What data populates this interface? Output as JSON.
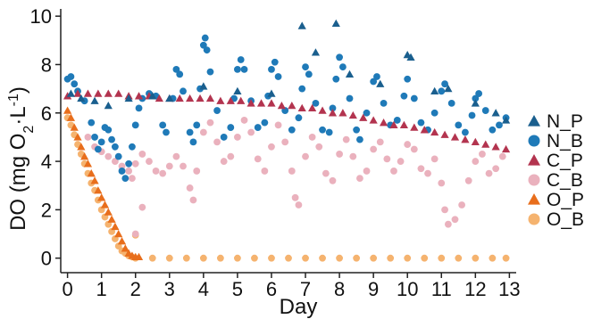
{
  "chart_data": {
    "type": "scatter",
    "xlabel": "Day",
    "ylabel": "DO (mg O2·L-1)",
    "xlim": [
      -0.2,
      13.2
    ],
    "ylim": [
      -0.6,
      10.3
    ],
    "xticks": [
      "0",
      "1",
      "2",
      "3",
      "4",
      "5",
      "6",
      "7",
      "8",
      "9",
      "10",
      "11",
      "12",
      "13"
    ],
    "yticks": [
      "0",
      "2",
      "4",
      "6",
      "8",
      "10"
    ],
    "grid": false,
    "legend_position": "right",
    "series": [
      {
        "name": "N_P",
        "marker": "triangle",
        "color": "#1a5f8e",
        "points": [
          [
            0.1,
            6.8
          ],
          [
            0.4,
            6.6
          ],
          [
            0.8,
            6.5
          ],
          [
            1.2,
            6.3
          ],
          [
            1.8,
            6.6
          ],
          [
            2.5,
            6.7
          ],
          [
            3.0,
            6.6
          ],
          [
            4.0,
            7.1
          ],
          [
            5.0,
            6.9
          ],
          [
            6.0,
            6.8
          ],
          [
            6.9,
            9.6
          ],
          [
            7.9,
            9.7
          ],
          [
            7.3,
            8.5
          ],
          [
            8.3,
            7.6
          ],
          [
            10.0,
            8.4
          ],
          [
            10.1,
            8.3
          ],
          [
            11.2,
            7.0
          ],
          [
            12.0,
            6.4
          ],
          [
            12.6,
            6.0
          ],
          [
            12.9,
            5.7
          ],
          [
            9.2,
            7.2
          ],
          [
            10.8,
            6.9
          ]
        ]
      },
      {
        "name": "N_B",
        "marker": "circle",
        "color": "#1f7ab8",
        "points": [
          [
            0.0,
            7.4
          ],
          [
            0.1,
            7.5
          ],
          [
            0.2,
            7.2
          ],
          [
            0.3,
            6.9
          ],
          [
            0.5,
            6.5
          ],
          [
            0.7,
            5.6
          ],
          [
            0.8,
            5.0
          ],
          [
            0.9,
            4.5
          ],
          [
            1.0,
            4.8
          ],
          [
            1.1,
            5.4
          ],
          [
            1.2,
            5.3
          ],
          [
            1.3,
            4.9
          ],
          [
            1.4,
            4.6
          ],
          [
            1.5,
            4.2
          ],
          [
            1.6,
            3.6
          ],
          [
            1.7,
            3.3
          ],
          [
            1.8,
            3.9
          ],
          [
            1.9,
            4.6
          ],
          [
            2.0,
            5.5
          ],
          [
            2.1,
            6.2
          ],
          [
            2.2,
            6.6
          ],
          [
            2.4,
            6.8
          ],
          [
            2.6,
            6.7
          ],
          [
            2.8,
            5.5
          ],
          [
            2.9,
            5.2
          ],
          [
            3.1,
            6.6
          ],
          [
            3.2,
            7.8
          ],
          [
            3.3,
            7.6
          ],
          [
            3.4,
            6.9
          ],
          [
            3.6,
            5.2
          ],
          [
            3.7,
            4.8
          ],
          [
            3.8,
            5.5
          ],
          [
            3.9,
            7.0
          ],
          [
            4.0,
            8.8
          ],
          [
            4.05,
            9.1
          ],
          [
            4.1,
            8.6
          ],
          [
            4.2,
            7.7
          ],
          [
            4.4,
            6.1
          ],
          [
            4.6,
            5.0
          ],
          [
            4.8,
            5.4
          ],
          [
            4.9,
            6.6
          ],
          [
            5.0,
            7.8
          ],
          [
            5.1,
            8.2
          ],
          [
            5.2,
            7.8
          ],
          [
            5.4,
            6.5
          ],
          [
            5.6,
            5.4
          ],
          [
            5.8,
            5.6
          ],
          [
            5.9,
            6.7
          ],
          [
            6.0,
            7.8
          ],
          [
            6.1,
            8.1
          ],
          [
            6.2,
            7.5
          ],
          [
            6.4,
            6.1
          ],
          [
            6.6,
            5.3
          ],
          [
            6.8,
            5.8
          ],
          [
            6.9,
            7.0
          ],
          [
            7.0,
            7.9
          ],
          [
            7.1,
            7.6
          ],
          [
            7.3,
            6.4
          ],
          [
            7.5,
            5.3
          ],
          [
            7.7,
            5.2
          ],
          [
            7.8,
            6.2
          ],
          [
            7.9,
            7.4
          ],
          [
            8.0,
            8.3
          ],
          [
            8.1,
            7.9
          ],
          [
            8.3,
            6.6
          ],
          [
            8.5,
            5.3
          ],
          [
            8.6,
            4.9
          ],
          [
            8.8,
            6.0
          ],
          [
            9.0,
            7.3
          ],
          [
            9.1,
            7.5
          ],
          [
            9.3,
            6.4
          ],
          [
            9.5,
            5.5
          ],
          [
            9.7,
            5.7
          ],
          [
            9.9,
            6.7
          ],
          [
            10.0,
            7.4
          ],
          [
            10.2,
            6.6
          ],
          [
            10.4,
            5.6
          ],
          [
            10.6,
            5.3
          ],
          [
            10.8,
            6.0
          ],
          [
            11.0,
            6.9
          ],
          [
            11.1,
            7.2
          ],
          [
            11.3,
            6.4
          ],
          [
            11.5,
            5.5
          ],
          [
            11.7,
            5.2
          ],
          [
            11.9,
            5.9
          ],
          [
            12.0,
            6.6
          ],
          [
            12.1,
            6.8
          ],
          [
            12.3,
            6.1
          ],
          [
            12.5,
            5.3
          ],
          [
            12.7,
            5.5
          ],
          [
            12.9,
            5.8
          ]
        ]
      },
      {
        "name": "C_P",
        "marker": "triangle",
        "color": "#b3344f",
        "points": [
          [
            0.0,
            6.7
          ],
          [
            0.3,
            6.8
          ],
          [
            0.6,
            6.8
          ],
          [
            0.9,
            6.8
          ],
          [
            1.2,
            6.8
          ],
          [
            1.5,
            6.8
          ],
          [
            1.8,
            6.7
          ],
          [
            2.1,
            6.7
          ],
          [
            2.4,
            6.7
          ],
          [
            2.7,
            6.6
          ],
          [
            3.0,
            6.6
          ],
          [
            3.3,
            6.6
          ],
          [
            3.6,
            6.6
          ],
          [
            3.9,
            6.6
          ],
          [
            4.2,
            6.6
          ],
          [
            4.5,
            6.5
          ],
          [
            4.8,
            6.5
          ],
          [
            5.1,
            6.5
          ],
          [
            5.4,
            6.4
          ],
          [
            5.7,
            6.4
          ],
          [
            6.0,
            6.4
          ],
          [
            6.3,
            6.3
          ],
          [
            6.6,
            6.3
          ],
          [
            6.9,
            6.2
          ],
          [
            7.2,
            6.2
          ],
          [
            7.5,
            6.1
          ],
          [
            7.8,
            6.0
          ],
          [
            8.1,
            6.0
          ],
          [
            8.4,
            5.9
          ],
          [
            8.7,
            5.8
          ],
          [
            9.0,
            5.7
          ],
          [
            9.3,
            5.6
          ],
          [
            9.6,
            5.5
          ],
          [
            9.9,
            5.5
          ],
          [
            10.2,
            5.4
          ],
          [
            10.5,
            5.3
          ],
          [
            10.8,
            5.2
          ],
          [
            11.1,
            5.1
          ],
          [
            11.4,
            5.0
          ],
          [
            11.7,
            4.9
          ],
          [
            12.0,
            4.8
          ],
          [
            12.3,
            4.7
          ],
          [
            12.6,
            4.6
          ],
          [
            12.9,
            4.5
          ]
        ]
      },
      {
        "name": "C_B",
        "marker": "circle",
        "color": "#eab1bd",
        "points": [
          [
            0.6,
            5.0
          ],
          [
            0.8,
            4.6
          ],
          [
            1.0,
            4.4
          ],
          [
            1.2,
            4.2
          ],
          [
            1.4,
            4.0
          ],
          [
            1.6,
            3.8
          ],
          [
            1.8,
            3.6
          ],
          [
            1.9,
            3.3
          ],
          [
            2.0,
            3.9
          ],
          [
            2.2,
            4.3
          ],
          [
            2.4,
            4.0
          ],
          [
            2.6,
            3.6
          ],
          [
            2.8,
            3.5
          ],
          [
            3.0,
            3.8
          ],
          [
            3.2,
            4.2
          ],
          [
            3.4,
            3.8
          ],
          [
            3.6,
            2.9
          ],
          [
            3.7,
            2.4
          ],
          [
            3.8,
            3.6
          ],
          [
            4.0,
            5.2
          ],
          [
            4.2,
            5.6
          ],
          [
            4.4,
            4.8
          ],
          [
            4.6,
            4.0
          ],
          [
            4.8,
            4.2
          ],
          [
            5.0,
            5.0
          ],
          [
            5.2,
            5.7
          ],
          [
            5.4,
            5.2
          ],
          [
            5.6,
            4.1
          ],
          [
            5.8,
            3.6
          ],
          [
            6.0,
            4.6
          ],
          [
            6.2,
            5.5
          ],
          [
            6.4,
            4.8
          ],
          [
            6.6,
            3.6
          ],
          [
            6.7,
            2.5
          ],
          [
            6.8,
            2.2
          ],
          [
            7.0,
            4.2
          ],
          [
            7.2,
            5.0
          ],
          [
            7.4,
            4.6
          ],
          [
            7.6,
            3.5
          ],
          [
            7.8,
            3.2
          ],
          [
            8.0,
            4.3
          ],
          [
            8.2,
            4.9
          ],
          [
            8.4,
            4.2
          ],
          [
            8.6,
            3.3
          ],
          [
            8.8,
            3.6
          ],
          [
            9.0,
            4.5
          ],
          [
            9.2,
            4.8
          ],
          [
            9.4,
            4.1
          ],
          [
            9.6,
            3.6
          ],
          [
            9.8,
            4.0
          ],
          [
            10.0,
            4.7
          ],
          [
            10.2,
            4.5
          ],
          [
            10.4,
            3.7
          ],
          [
            10.6,
            3.5
          ],
          [
            10.8,
            4.1
          ],
          [
            11.0,
            3.1
          ],
          [
            11.1,
            2.0
          ],
          [
            11.2,
            1.4
          ],
          [
            11.4,
            1.6
          ],
          [
            11.6,
            2.2
          ],
          [
            11.8,
            3.2
          ],
          [
            12.0,
            4.0
          ],
          [
            12.2,
            4.3
          ],
          [
            12.4,
            3.5
          ],
          [
            12.6,
            3.7
          ],
          [
            12.8,
            4.2
          ],
          [
            2.0,
            1.0
          ],
          [
            2.2,
            2.1
          ]
        ]
      },
      {
        "name": "O_P",
        "marker": "triangle",
        "color": "#e86e1c",
        "points": [
          [
            0.0,
            6.1
          ],
          [
            0.1,
            5.8
          ],
          [
            0.2,
            5.4
          ],
          [
            0.3,
            5.0
          ],
          [
            0.4,
            4.6
          ],
          [
            0.5,
            4.2
          ],
          [
            0.6,
            3.9
          ],
          [
            0.7,
            3.5
          ],
          [
            0.8,
            3.2
          ],
          [
            0.9,
            2.8
          ],
          [
            1.0,
            2.5
          ],
          [
            1.1,
            2.2
          ],
          [
            1.2,
            1.9
          ],
          [
            1.3,
            1.6
          ],
          [
            1.4,
            1.3
          ],
          [
            1.5,
            1.0
          ],
          [
            1.6,
            0.7
          ],
          [
            1.7,
            0.4
          ],
          [
            1.8,
            0.2
          ],
          [
            1.9,
            0.1
          ],
          [
            2.0,
            0.05
          ],
          [
            2.1,
            0.05
          ]
        ]
      },
      {
        "name": "O_B",
        "marker": "circle",
        "color": "#f5b36f",
        "points": [
          [
            0.0,
            5.8
          ],
          [
            0.1,
            5.5
          ],
          [
            0.2,
            5.1
          ],
          [
            0.3,
            4.7
          ],
          [
            0.4,
            4.3
          ],
          [
            0.5,
            3.9
          ],
          [
            0.6,
            3.5
          ],
          [
            0.7,
            3.1
          ],
          [
            0.8,
            2.8
          ],
          [
            0.9,
            2.4
          ],
          [
            1.0,
            2.0
          ],
          [
            1.1,
            1.7
          ],
          [
            1.2,
            1.4
          ],
          [
            1.3,
            1.1
          ],
          [
            1.4,
            0.8
          ],
          [
            1.5,
            0.5
          ],
          [
            1.6,
            0.3
          ],
          [
            1.7,
            0.2
          ],
          [
            1.8,
            0.1
          ],
          [
            1.9,
            0.05
          ],
          [
            2.0,
            0.0
          ],
          [
            2.5,
            0.0
          ],
          [
            3.0,
            0.0
          ],
          [
            3.5,
            0.0
          ],
          [
            4.0,
            0.0
          ],
          [
            4.5,
            0.0
          ],
          [
            5.0,
            0.0
          ],
          [
            5.5,
            0.0
          ],
          [
            6.0,
            0.0
          ],
          [
            6.5,
            0.0
          ],
          [
            7.0,
            0.0
          ],
          [
            7.5,
            0.0
          ],
          [
            8.0,
            0.0
          ],
          [
            8.5,
            0.0
          ],
          [
            9.0,
            0.0
          ],
          [
            9.5,
            0.0
          ],
          [
            10.0,
            0.0
          ],
          [
            10.5,
            0.0
          ],
          [
            11.0,
            0.0
          ],
          [
            11.5,
            0.0
          ],
          [
            12.0,
            0.0
          ],
          [
            12.5,
            0.0
          ],
          [
            12.9,
            0.0
          ],
          [
            2.0,
            0.95
          ]
        ]
      }
    ]
  }
}
